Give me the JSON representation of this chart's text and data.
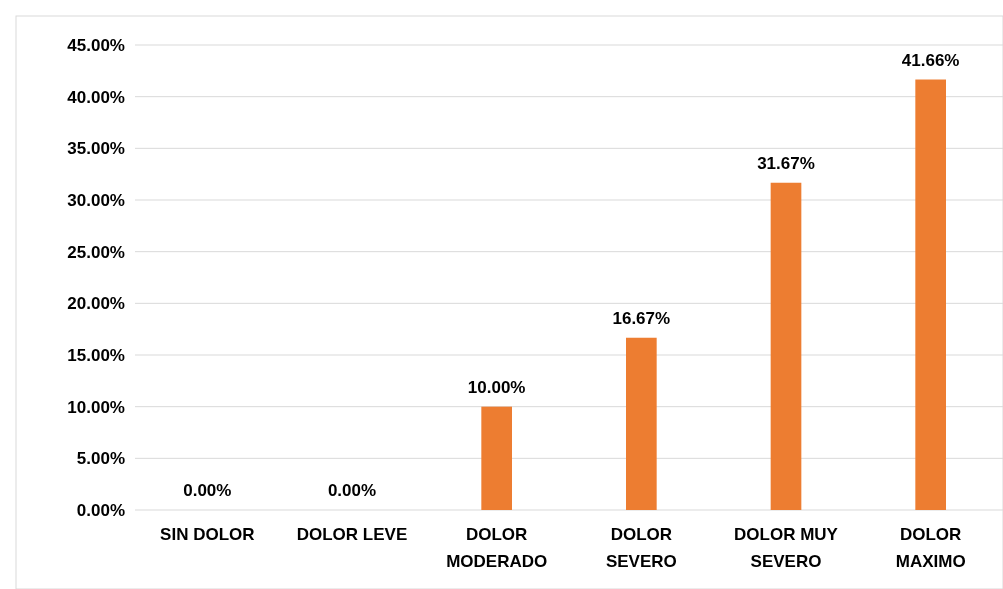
{
  "chart_data": {
    "type": "bar",
    "categories": [
      "SIN DOLOR",
      "DOLOR LEVE",
      "DOLOR MODERADO",
      "DOLOR SEVERO",
      "DOLOR MUY SEVERO",
      "DOLOR MAXIMO"
    ],
    "values": [
      0,
      0,
      10,
      16.67,
      31.67,
      41.66
    ],
    "color": "#ed7d31",
    "value_labels": [
      "0.00%",
      "0.00%",
      "10.00%",
      "16.67%",
      "31.67%",
      "41.66%"
    ],
    "ylim": [
      0,
      45
    ],
    "yticks": [
      {
        "value": 0,
        "label": "0.00%"
      },
      {
        "value": 5,
        "label": "5.00%"
      },
      {
        "value": 10,
        "label": "10.00%"
      },
      {
        "value": 15,
        "label": "15.00%"
      },
      {
        "value": 20,
        "label": "20.00%"
      },
      {
        "value": 25,
        "label": "25.00%"
      },
      {
        "value": 30,
        "label": "30.00%"
      },
      {
        "value": 35,
        "label": "35.00%"
      },
      {
        "value": 40,
        "label": "40.00%"
      },
      {
        "value": 45,
        "label": "45.00%"
      }
    ],
    "grid": "y"
  }
}
